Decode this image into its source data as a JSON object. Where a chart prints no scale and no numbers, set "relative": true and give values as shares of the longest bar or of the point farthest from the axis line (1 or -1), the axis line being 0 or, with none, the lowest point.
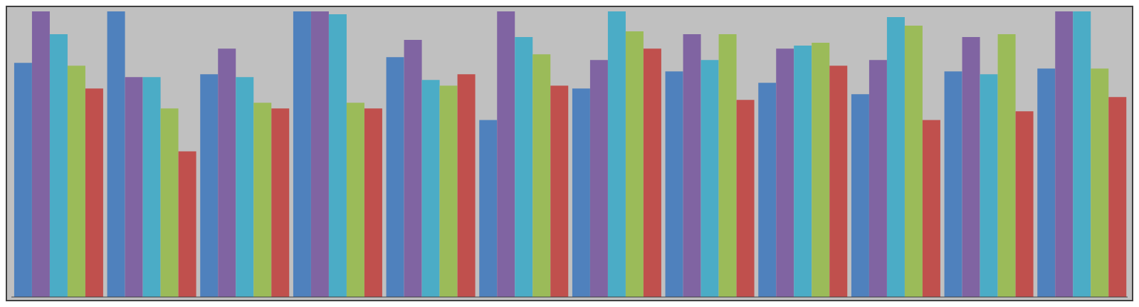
{
  "chart_data": {
    "type": "bar",
    "relative": true,
    "grid": false,
    "legend": false,
    "categories": [
      null,
      null,
      null,
      null,
      null,
      null,
      null,
      null,
      null,
      null,
      null,
      null
    ],
    "series": [
      {
        "color": "#4f81bd",
        "values": [
          0.82,
          1,
          0.78,
          1,
          0.84,
          0.62,
          0.73,
          0.79,
          0.75,
          0.71,
          0.79,
          0.8
        ]
      },
      {
        "color": "#8064a2",
        "values": [
          1,
          0.77,
          0.87,
          1,
          0.9,
          1,
          0.83,
          0.92,
          0.87,
          0.83,
          0.91,
          1
        ]
      },
      {
        "color": "#4bacc6",
        "values": [
          0.92,
          0.77,
          0.77,
          0.99,
          0.76,
          0.91,
          1,
          0.83,
          0.88,
          0.98,
          0.78,
          1
        ]
      },
      {
        "color": "#9bbb59",
        "values": [
          0.81,
          0.66,
          0.68,
          0.68,
          0.74,
          0.85,
          0.93,
          0.92,
          0.89,
          0.95,
          0.92,
          0.8
        ]
      },
      {
        "color": "#c0504d",
        "values": [
          0.73,
          0.51,
          0.66,
          0.66,
          0.78,
          0.74,
          0.87,
          0.69,
          0.81,
          0.62,
          0.65,
          0.7
        ]
      }
    ]
  }
}
